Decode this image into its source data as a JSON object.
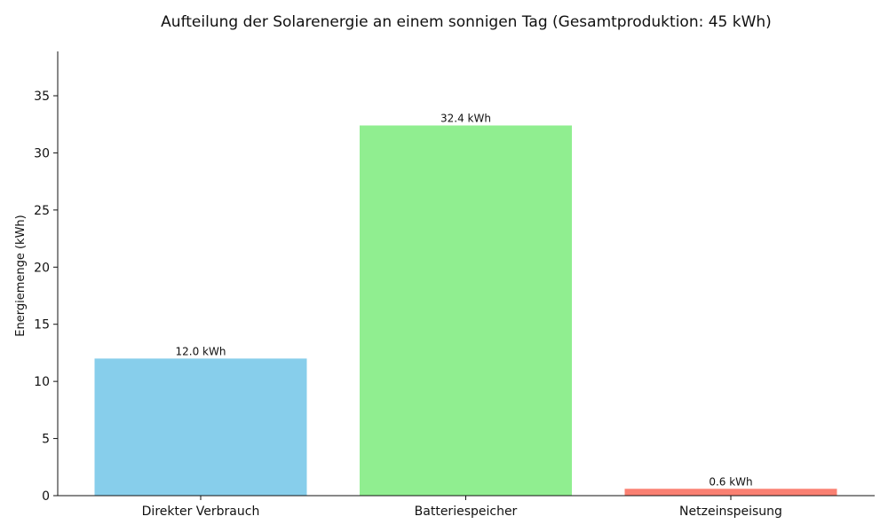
{
  "chart_data": {
    "type": "bar",
    "title": "Aufteilung der Solarenergie an einem sonnigen Tag (Gesamtproduktion: 45 kWh)",
    "xlabel": "",
    "ylabel": "Energiemenge (kWh)",
    "categories": [
      "Direkter Verbrauch",
      "Batteriespeicher",
      "Netzeinspeisung"
    ],
    "values": [
      12.0,
      32.4,
      0.6
    ],
    "data_labels": [
      "12.0 kWh",
      "32.4 kWh",
      "0.6 kWh"
    ],
    "colors": [
      "#87ceeb",
      "#90ee90",
      "#fa8072"
    ],
    "ylim": [
      0,
      38.88
    ],
    "yticks": [
      0,
      5,
      10,
      15,
      20,
      25,
      30,
      35
    ],
    "grid": false,
    "legend": "none"
  }
}
